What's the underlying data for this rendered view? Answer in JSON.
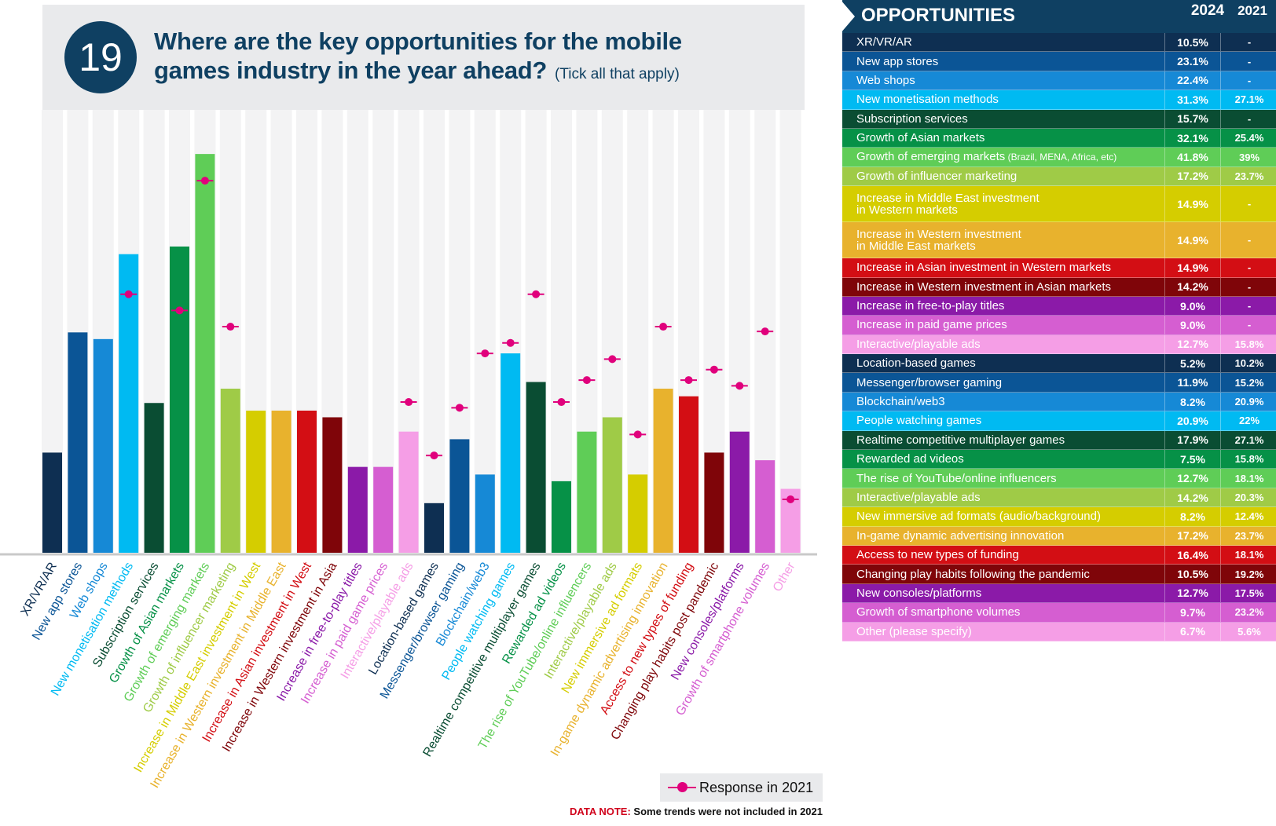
{
  "header": {
    "number": "19",
    "title_line1": "Where are the key opportunities for the mobile",
    "title_line2": "games industry in the year ahead?",
    "subtitle": "(Tick all that apply)"
  },
  "legend": {
    "label": "Response in 2021",
    "marker_color": "#e0007c"
  },
  "data_note": {
    "label": "DATA NOTE:",
    "text": "Some trends were not included in 2021"
  },
  "chart_data": {
    "type": "bar",
    "title": "Where are the key opportunities for the mobile games industry in the year ahead?",
    "ylim": [
      0,
      45
    ],
    "categories": [
      "XR/VR/AR",
      "New app stores",
      "Web shops",
      "New monetisation methods",
      "Subscription services",
      "Growth of Asian markets",
      "Growth of emerging markets",
      "Growth of influencer marketing",
      "Increase in Middle East investment in West",
      "Increase in Western investment in Middle East",
      "Increase in Asian investment in West",
      "Increase in Western investment in Asia",
      "Increase in free-to-play titles",
      "Increase in paid game prices",
      "Interactive/playable ads",
      "Location-based games",
      "Messenger/browser gaming",
      "Blockchain/web3",
      "People watching games",
      "Realtime competitive multiplayer games",
      "Rewarded ad videos",
      "The rise of YouTube/online influencers",
      "Interactive/playable ads",
      "New immersive ad formats",
      "In-game dynamic advertising innovation",
      "Access to new types of funding",
      "Changing play habits post pandemic",
      "New consoles/platforms",
      "Growth of smartphone volumes",
      "Other"
    ],
    "colors": [
      "#0e2f52",
      "#0b5596",
      "#1689d6",
      "#00baf2",
      "#0a4d33",
      "#069147",
      "#5fcd57",
      "#9fcb47",
      "#d5cd00",
      "#e8b22d",
      "#d30e14",
      "#7f0509",
      "#8b1aa8",
      "#d55ed1",
      "#f59ee6",
      "#0e2f52",
      "#0b5596",
      "#1689d6",
      "#00baf2",
      "#0a4d33",
      "#069147",
      "#5fcd57",
      "#9fcb47",
      "#d5cd00",
      "#e8b22d",
      "#d30e14",
      "#7f0509",
      "#8b1aa8",
      "#d55ed1",
      "#f59ee6"
    ],
    "series": [
      {
        "name": "2024",
        "values": [
          10.5,
          23.1,
          22.4,
          31.3,
          15.7,
          32.1,
          41.8,
          17.2,
          14.9,
          14.9,
          14.9,
          14.2,
          9.0,
          9.0,
          12.7,
          5.2,
          11.9,
          8.2,
          20.9,
          17.9,
          7.5,
          12.7,
          14.2,
          8.2,
          17.2,
          16.4,
          10.5,
          12.7,
          9.7,
          6.7
        ]
      },
      {
        "name": "Response in 2021",
        "values": [
          null,
          null,
          null,
          27.1,
          null,
          25.4,
          39,
          23.7,
          null,
          null,
          null,
          null,
          null,
          null,
          15.8,
          10.2,
          15.2,
          20.9,
          22,
          27.1,
          15.8,
          18.1,
          20.3,
          12.4,
          23.7,
          18.1,
          19.2,
          17.5,
          23.2,
          5.6
        ]
      }
    ]
  },
  "table": {
    "title": "OPPORTUNITIES",
    "col_2024": "2024",
    "col_2021": "2021",
    "rows": [
      {
        "label": "XR/VR/AR",
        "v2024": "10.5%",
        "v2021": "-",
        "color": "#0e2f52"
      },
      {
        "label": "New app stores",
        "v2024": "23.1%",
        "v2021": "-",
        "color": "#0b5596"
      },
      {
        "label": "Web shops",
        "v2024": "22.4%",
        "v2021": "-",
        "color": "#1689d6"
      },
      {
        "label": "New monetisation methods",
        "v2024": "31.3%",
        "v2021": "27.1%",
        "color": "#00baf2"
      },
      {
        "label": "Subscription services",
        "v2024": "15.7%",
        "v2021": "-",
        "color": "#0a4d33"
      },
      {
        "label": "Growth of Asian markets",
        "v2024": "32.1%",
        "v2021": "25.4%",
        "color": "#069147"
      },
      {
        "label": "Growth of emerging markets",
        "small": "(Brazil, MENA, Africa, etc)",
        "v2024": "41.8%",
        "v2021": "39%",
        "color": "#5fcd57"
      },
      {
        "label": "Growth of influencer marketing",
        "v2024": "17.2%",
        "v2021": "23.7%",
        "color": "#9fcb47"
      },
      {
        "label": "Increase in Middle East investment",
        "label2": "in Western markets",
        "v2024": "14.9%",
        "v2021": "-",
        "color": "#d5cd00",
        "tall": true
      },
      {
        "label": "Increase in Western investment",
        "label2": "in Middle East markets",
        "v2024": "14.9%",
        "v2021": "-",
        "color": "#e8b22d",
        "tall": true
      },
      {
        "label": "Increase in Asian investment in Western markets",
        "v2024": "14.9%",
        "v2021": "-",
        "color": "#d30e14"
      },
      {
        "label": "Increase in Western investment in Asian markets",
        "v2024": "14.2%",
        "v2021": "-",
        "color": "#7f0509"
      },
      {
        "label": "Increase in free-to-play titles",
        "v2024": "9.0%",
        "v2021": "-",
        "color": "#8b1aa8"
      },
      {
        "label": "Increase in paid game prices",
        "v2024": "9.0%",
        "v2021": "-",
        "color": "#d55ed1"
      },
      {
        "label": "Interactive/playable ads",
        "v2024": "12.7%",
        "v2021": "15.8%",
        "color": "#f59ee6"
      },
      {
        "label": "Location-based games",
        "v2024": "5.2%",
        "v2021": "10.2%",
        "color": "#0e2f52"
      },
      {
        "label": "Messenger/browser gaming",
        "v2024": "11.9%",
        "v2021": "15.2%",
        "color": "#0b5596"
      },
      {
        "label": "Blockchain/web3",
        "v2024": "8.2%",
        "v2021": "20.9%",
        "color": "#1689d6"
      },
      {
        "label": "People watching games",
        "v2024": "20.9%",
        "v2021": "22%",
        "color": "#00baf2"
      },
      {
        "label": "Realtime competitive multiplayer games",
        "v2024": "17.9%",
        "v2021": "27.1%",
        "color": "#0a4d33"
      },
      {
        "label": "Rewarded ad videos",
        "v2024": "7.5%",
        "v2021": "15.8%",
        "color": "#069147"
      },
      {
        "label": "The rise of YouTube/online influencers",
        "v2024": "12.7%",
        "v2021": "18.1%",
        "color": "#5fcd57"
      },
      {
        "label": "Interactive/playable ads",
        "v2024": "14.2%",
        "v2021": "20.3%",
        "color": "#9fcb47"
      },
      {
        "label": "New immersive ad formats (audio/background)",
        "v2024": "8.2%",
        "v2021": "12.4%",
        "color": "#d5cd00"
      },
      {
        "label": "In-game dynamic advertising innovation",
        "v2024": "17.2%",
        "v2021": "23.7%",
        "color": "#e8b22d"
      },
      {
        "label": "Access to new types of funding",
        "v2024": "16.4%",
        "v2021": "18.1%",
        "color": "#d30e14"
      },
      {
        "label": "Changing play habits following the pandemic",
        "v2024": "10.5%",
        "v2021": "19.2%",
        "color": "#7f0509"
      },
      {
        "label": "New consoles/platforms",
        "v2024": "12.7%",
        "v2021": "17.5%",
        "color": "#8b1aa8"
      },
      {
        "label": "Growth of smartphone volumes",
        "v2024": "9.7%",
        "v2021": "23.2%",
        "color": "#d55ed1"
      },
      {
        "label": "Other (please specify)",
        "v2024": "6.7%",
        "v2021": "5.6%",
        "color": "#f59ee6"
      }
    ]
  }
}
